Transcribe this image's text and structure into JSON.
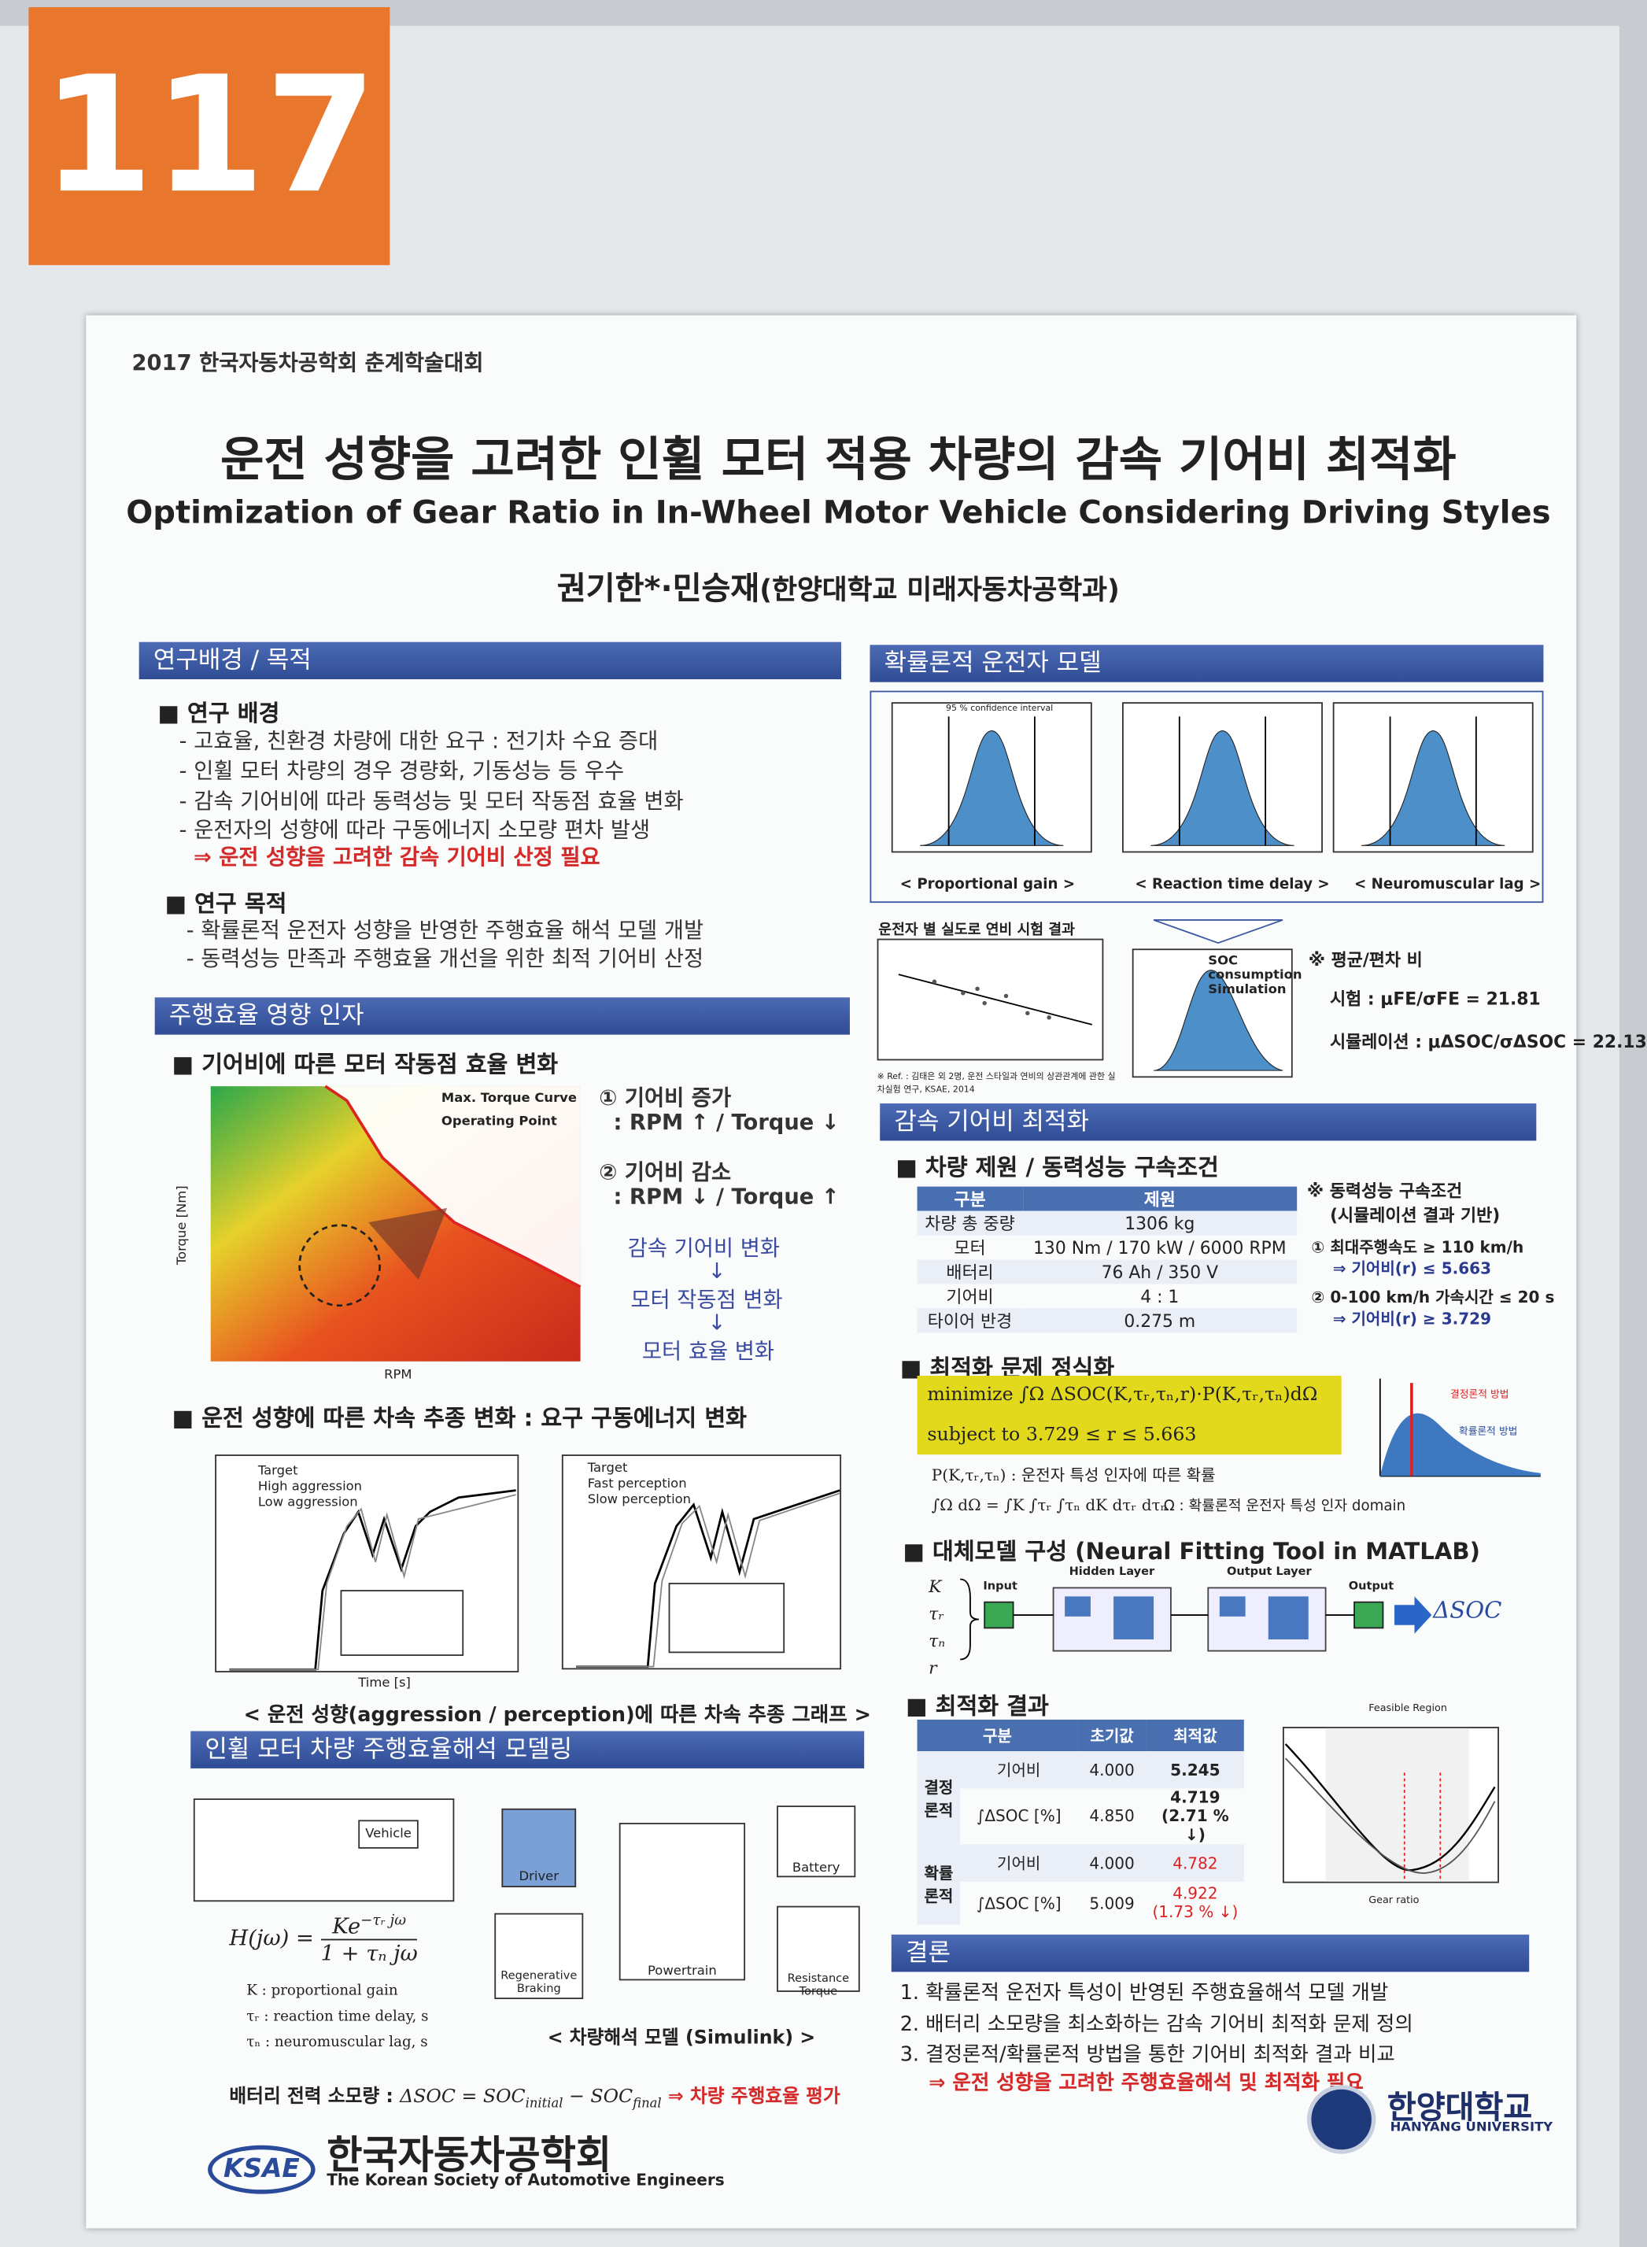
{
  "header": {
    "badge": "117",
    "conference": "2017 한국자동차공학회 춘계학술대회",
    "title_ko": "운전 성향을 고려한 인휠 모터 적용 차량의 감속 기어비 최적화",
    "title_en": "Optimization of Gear Ratio in In-Wheel Motor Vehicle Considering Driving Styles",
    "authors": "권기한*·민승재",
    "affiliation": "(한양대학교 미래자동차공학과)"
  },
  "background": {
    "heading": "연구배경 / 목적",
    "sub1": "■ 연구 배경",
    "lines1": [
      "- 고효율, 친환경 차량에 대한 요구 : 전기차 수요 증대",
      "- 인휠 모터 차량의 경우 경량화, 기동성능 등 우수",
      "- 감속 기어비에 따라 동력성능 및 모터 작동점 효율 변화",
      "- 운전자의 성향에 따라 구동에너지 소모량 편차 발생"
    ],
    "conclusion1": "⇒ 운전 성향을 고려한 감속 기어비 산정 필요",
    "sub2": "■ 연구 목적",
    "lines2": [
      "- 확률론적 운전자 성향을 반영한 주행효율 해석 모델 개발",
      "- 동력성능 만족과 주행효율 개선을 위한 최적 기어비 산정"
    ]
  },
  "factors": {
    "heading": "주행효율 영향 인자",
    "sub1": "■ 기어비에 따른 모터 작동점 효율 변화",
    "legend": [
      "Max. Torque Curve",
      "Operating Point"
    ],
    "x_label": "RPM",
    "y_label": "Torque [Nm]",
    "notes": [
      "① 기어비 증가",
      ": RPM ↑ / Torque ↓",
      "② 기어비 감소",
      ": RPM ↓ / Torque ↑"
    ],
    "flow": [
      "감속 기어비 변화",
      "모터 작동점 변화",
      "모터 효율 변화"
    ],
    "sub2": "■ 운전 성향에 따른 차속 추종 변화 : 요구 구동에너지 변화",
    "legend_a": [
      "Target",
      "High aggression",
      "Low aggression"
    ],
    "legend_b": [
      "Target",
      "Fast perception",
      "Slow perception"
    ],
    "x_label2": "Time [s]",
    "caption": "< 운전 성향(aggression / perception)에 따른 차속 추종 그래프 >"
  },
  "modeling": {
    "heading": "인휠 모터 차량 주행효율해석 모델링",
    "blocks": [
      "Vehicle",
      "Driver",
      "Battery",
      "Regenerative Braking",
      "Powertrain",
      "Resistance Torque"
    ],
    "formula_lhs": "H(jω) =",
    "formula_num": "Ke",
    "formula_exp": "−τᵣ jω",
    "formula_den": "1 + τₙ jω",
    "defs": [
      "K : proportional gain",
      "τᵣ : reaction time delay, s",
      "τₙ : neuromuscular lag, s"
    ],
    "caption": "< 차량해석 모델 (Simulink) >",
    "battery_label": "배터리 전력 소모량 :",
    "battery_formula": "ΔSOC = SOC",
    "battery_sub1": "initial",
    "battery_mid": " − SOC",
    "battery_sub2": "final",
    "battery_arrow": "⇒ 차량 주행효율 평가"
  },
  "footer": {
    "logo": "KSAE",
    "society_ko": "한국자동차공학회",
    "society_en": "The Korean Society of Automotive Engineers"
  },
  "driver_model": {
    "heading": "확률론적 운전자 모델",
    "confidence": "95 % confidence interval",
    "captions": [
      "< Proportional gain >",
      "< Reaction time delay >",
      "< Neuromuscular lag >"
    ],
    "test_title": "운전자 별 실도로 연비 시험 결과",
    "sim_label": "SOC consumption Simulation",
    "ratio_title": "※ 평균/편차 비",
    "ratio_test": "시험 : μFE/σFE = 21.81",
    "ratio_sim": "시뮬레이션 : μΔSOC/σΔSOC = 22.13",
    "ref": "※ Ref. : 김태은 외 2명, 운전 스타일과 연비의 상관관계에 관한 실차실험 연구, KSAE, 2014"
  },
  "optimization": {
    "heading": "감속 기어비 최적화",
    "sub1": "■ 차량 제원 / 동력성능 구속조건",
    "spec_header": [
      "구분",
      "제원"
    ],
    "spec_rows": [
      [
        "차량 총 중량",
        "1306 kg"
      ],
      [
        "모터",
        "130 Nm / 170 kW / 6000 RPM"
      ],
      [
        "배터리",
        "76 Ah / 350 V"
      ],
      [
        "기어비",
        "4 : 1"
      ],
      [
        "타이어 반경",
        "0.275 m"
      ]
    ],
    "constraints": [
      "※ 동력성능 구속조건",
      "(시뮬레이션 결과 기반)",
      "① 최대주행속도 ≥ 110 km/h",
      "⇒ 기어비(r) ≤ 5.663",
      "② 0-100 km/h 가속시간 ≤ 20 s",
      "⇒ 기어비(r) ≥ 3.729"
    ],
    "sub2": "■ 최적화 문제 정식화",
    "minimize": "minimize ∫Ω ΔSOC(K,τᵣ,τₙ,r)·P(K,τᵣ,τₙ)dΩ",
    "subject": "subject to 3.729 ≤ r ≤ 5.663",
    "prob_def": "P(K,τᵣ,τₙ) : 운전자 특성 인자에 따른 확률",
    "domain_int": "∫Ω dΩ = ∫K ∫τᵣ ∫τₙ dK dτᵣ dτₙ",
    "domain_def": "Ω : 확률론적 운전자 특성 인자 domain",
    "graph_labels": [
      "결정론적 방법",
      "확률론적 방법"
    ],
    "sub3": "■ 대체모델 구성 (Neural Fitting Tool in MATLAB)",
    "nn_inputs": [
      "K",
      "τᵣ",
      "τₙ",
      "r"
    ],
    "nn_labels": [
      "Input",
      "Hidden Layer",
      "Output Layer",
      "Output"
    ],
    "nn_output": "ΔSOC",
    "sub4": "■ 최적화 결과",
    "result_header": [
      "구분",
      "초기값",
      "최적값"
    ],
    "result_groups": [
      "결정론적",
      "확률론적"
    ],
    "result_rows": [
      [
        "기어비",
        "4.000",
        "5.245"
      ],
      [
        "∫ΔSOC [%]",
        "4.850",
        "4.719 (2.71 % ↓)"
      ],
      [
        "기어비",
        "4.000",
        "4.782"
      ],
      [
        "∫ΔSOC [%]",
        "5.009",
        "4.922 (1.73 % ↓)"
      ]
    ],
    "result_x_label": "Gear ratio",
    "result_title": "Feasible Region"
  },
  "conclusion": {
    "heading": "결론",
    "lines": [
      "1. 확률론적 운전자 특성이 반영된 주행효율해석 모델 개발",
      "2. 배터리 소모량을 최소화하는 감속 기어비 최적화 문제 정의",
      "3. 결정론적/확률론적 방법을 통한 기어비 최적화 결과 비교"
    ],
    "highlight": "⇒ 운전 성향을 고려한 주행효율해석 및 최적화 필요"
  },
  "university": {
    "name_ko": "한양대학교",
    "name_en": "HANYANG UNIVERSITY"
  }
}
